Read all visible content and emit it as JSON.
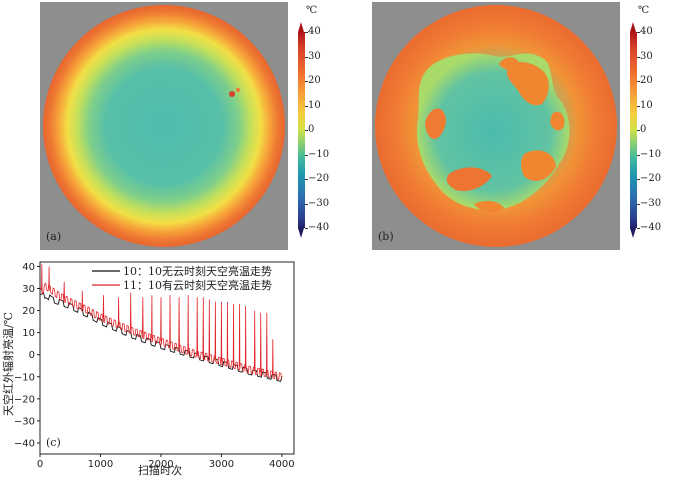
{
  "panels": [
    {
      "id": "a",
      "label": "(a)"
    },
    {
      "id": "b",
      "label": "(b)"
    }
  ],
  "colorbar": {
    "unit": "℃",
    "ticks": [
      "40",
      "30",
      "20",
      "10",
      "0",
      "−10",
      "−20",
      "−30",
      "−40"
    ],
    "range": [
      -40,
      40
    ]
  },
  "chart_data": {
    "type": "line",
    "panel_label": "(c)",
    "xlabel": "扫描时次",
    "ylabel": "天空红外辐射亮温/℃",
    "xlim": [
      0,
      4200
    ],
    "ylim": [
      -45,
      42
    ],
    "xticks": [
      "0",
      "1000",
      "2000",
      "3000",
      "4000"
    ],
    "yticks": [
      "40",
      "30",
      "20",
      "10",
      "0",
      "−10",
      "−20",
      "−30",
      "−40"
    ],
    "grid": false,
    "legend_position": "top-right",
    "series": [
      {
        "name": "10：10无云时刻天空亮温走势",
        "color": "#111111",
        "baseline": [
          [
            0,
            26
          ],
          [
            100,
            27
          ],
          [
            200,
            25
          ],
          [
            300,
            24
          ],
          [
            500,
            22
          ],
          [
            800,
            18
          ],
          [
            1000,
            15
          ],
          [
            1500,
            9
          ],
          [
            2000,
            4
          ],
          [
            2500,
            0
          ],
          [
            3000,
            -4
          ],
          [
            3500,
            -8
          ],
          [
            4000,
            -11
          ]
        ]
      },
      {
        "name": "11：10有云时刻天空亮温走势",
        "color": "#e0262b",
        "baseline": [
          [
            0,
            28
          ],
          [
            100,
            31
          ],
          [
            200,
            29
          ],
          [
            300,
            27
          ],
          [
            500,
            24
          ],
          [
            800,
            20
          ],
          [
            1000,
            17
          ],
          [
            1500,
            11
          ],
          [
            2000,
            6
          ],
          [
            2500,
            1
          ],
          [
            3000,
            -3
          ],
          [
            3500,
            -7
          ],
          [
            4000,
            -10
          ]
        ],
        "peaks": [
          [
            30,
            41
          ],
          [
            150,
            40
          ],
          [
            400,
            33
          ],
          [
            700,
            29
          ],
          [
            1050,
            27
          ],
          [
            1300,
            26
          ],
          [
            1500,
            28
          ],
          [
            1700,
            26
          ],
          [
            1850,
            27
          ],
          [
            2000,
            26
          ],
          [
            2150,
            27
          ],
          [
            2300,
            26
          ],
          [
            2450,
            27
          ],
          [
            2600,
            26
          ],
          [
            2700,
            26
          ],
          [
            2800,
            25
          ],
          [
            2900,
            24
          ],
          [
            3000,
            24
          ],
          [
            3100,
            24
          ],
          [
            3200,
            23
          ],
          [
            3300,
            23
          ],
          [
            3400,
            22
          ],
          [
            3550,
            20
          ],
          [
            3650,
            19
          ],
          [
            3750,
            19
          ],
          [
            3850,
            7
          ]
        ]
      }
    ]
  }
}
